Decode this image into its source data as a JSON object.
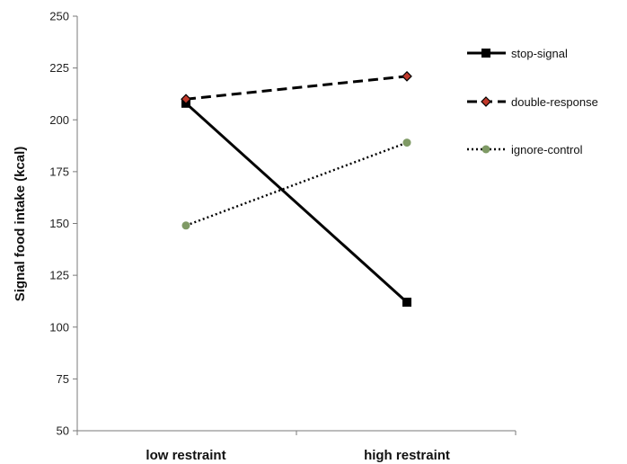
{
  "chart_data": {
    "type": "line",
    "title": "",
    "xlabel": "",
    "ylabel": "Signal food intake (kcal)",
    "categories": [
      "low restraint",
      "high restraint"
    ],
    "ylim": [
      50,
      250
    ],
    "yticks": [
      50,
      75,
      100,
      125,
      150,
      175,
      200,
      225,
      250
    ],
    "grid": false,
    "legend_position": "right",
    "series": [
      {
        "name": "stop-signal",
        "values": [
          208,
          112
        ],
        "color": "#000000",
        "line_style": "solid",
        "marker": "square"
      },
      {
        "name": "double-response",
        "values": [
          210,
          221
        ],
        "color": "#000000",
        "line_style": "dashed",
        "marker": "diamond",
        "marker_color": "#c0392b"
      },
      {
        "name": "ignore-control",
        "values": [
          149,
          189
        ],
        "color": "#000000",
        "line_style": "dotted",
        "marker": "circle",
        "marker_color": "#7f9a65"
      }
    ]
  }
}
